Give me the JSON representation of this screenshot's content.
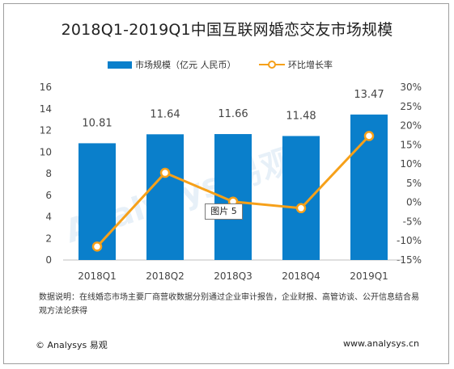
{
  "title": "2018Q1-2019Q1中国互联网婚恋交友市场规模",
  "legend": {
    "bar_label": "市场规模（亿元 人民币）",
    "line_label": "环比增长率"
  },
  "chart_data": {
    "type": "bar+line",
    "categories": [
      "2018Q1",
      "2018Q2",
      "2018Q3",
      "2018Q4",
      "2019Q1"
    ],
    "series": [
      {
        "name": "市场规模（亿元 人民币）",
        "type": "bar",
        "axis": "left",
        "values": [
          10.81,
          11.64,
          11.66,
          11.48,
          13.47
        ]
      },
      {
        "name": "环比增长率",
        "type": "line",
        "axis": "right",
        "values": [
          -11.5,
          7.7,
          0.2,
          -1.5,
          17.3
        ]
      }
    ],
    "bar_labels": [
      "10.81",
      "11.64",
      "11.66",
      "11.48",
      "13.47"
    ],
    "left_axis": {
      "ylim": [
        0,
        16
      ],
      "ticks": [
        "0",
        "2",
        "4",
        "6",
        "8",
        "10",
        "12",
        "14",
        "16"
      ]
    },
    "right_axis": {
      "ylim": [
        -15,
        30
      ],
      "ticks": [
        "-15%",
        "-10%",
        "-5%",
        "0%",
        "5%",
        "10%",
        "15%",
        "20%",
        "25%",
        "30%"
      ]
    },
    "colors": {
      "bar": "#0a7fcb",
      "line": "#f6a019"
    }
  },
  "callout": "图片 5",
  "note": "数据说明：在线婚恋市场主要厂商营收数据分别通过企业审计报告，企业财报、高管访谈、公开信息结合易观方法论获得",
  "footer": {
    "left": "© Analysys 易观",
    "right": "www.analysys.cn"
  }
}
